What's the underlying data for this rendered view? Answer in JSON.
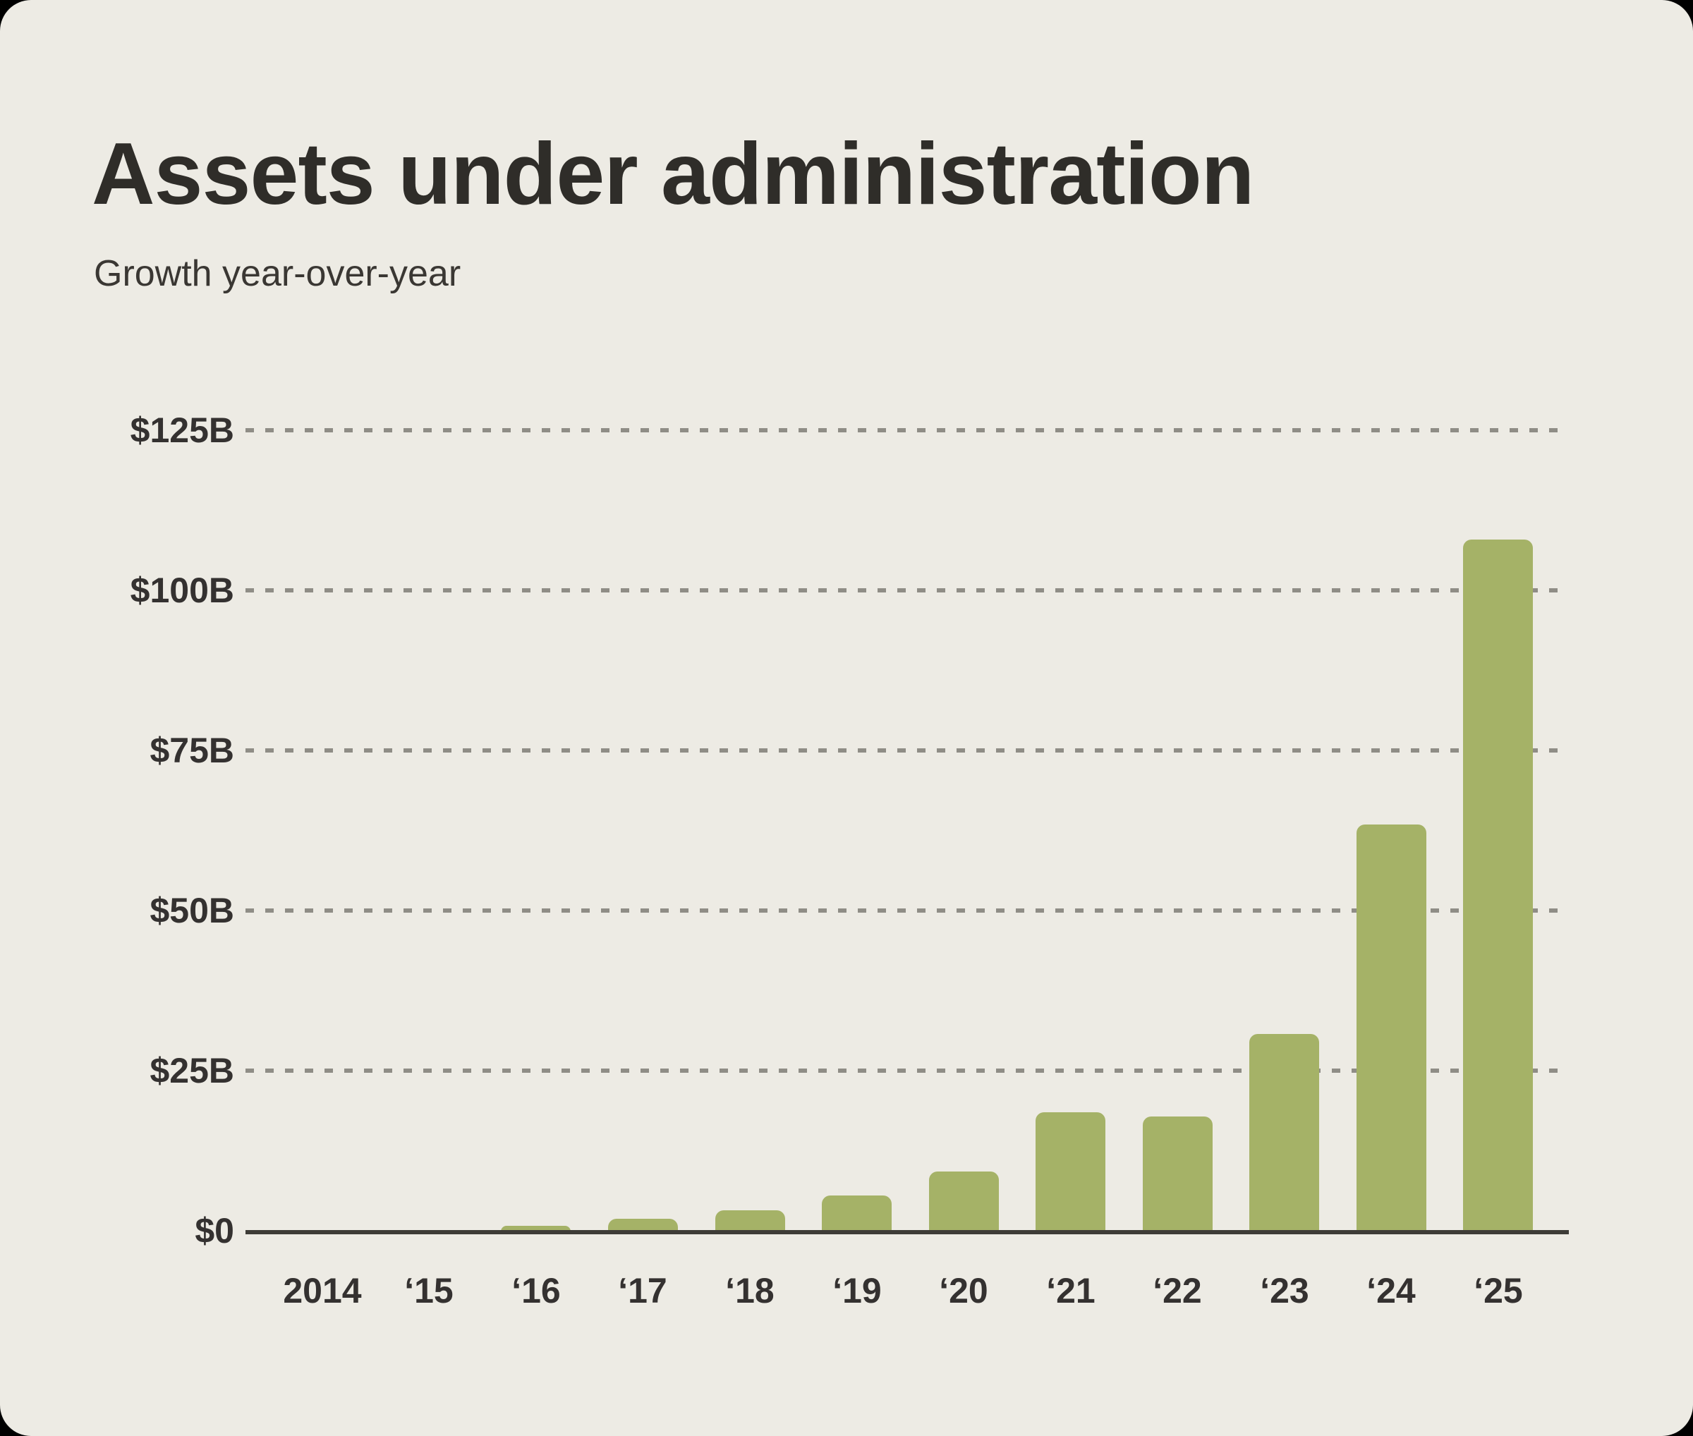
{
  "header": {
    "title": "Assets under administration",
    "subtitle": "Growth year-over-year"
  },
  "theme": {
    "page_bg": "#000000",
    "card_bg": "#edebe4",
    "bar": "#a5b267",
    "gridline": "#8f8d86",
    "axis_line": "#3e3c37",
    "title_text": "#2f2d29",
    "subtitle_text": "#3a3733",
    "label_text": "#343130"
  },
  "chart_data": {
    "type": "bar",
    "title": "Assets under administration",
    "subtitle": "Growth year-over-year",
    "unit": "USD billions",
    "categories": [
      "2014",
      "‘15",
      "‘16",
      "‘17",
      "‘18",
      "‘19",
      "‘20",
      "‘21",
      "‘22",
      "‘23",
      "‘24",
      "‘25"
    ],
    "values": [
      0,
      0,
      0.9,
      2,
      3.3,
      5.6,
      9.4,
      18.6,
      18,
      30.8,
      63.5,
      108
    ],
    "y_ticks": [
      "$0",
      "$25B",
      "$50B",
      "$75B",
      "$100B",
      "$125B"
    ],
    "y_tick_values": [
      0,
      25,
      50,
      75,
      100,
      125
    ],
    "ylim": [
      0,
      125
    ],
    "xlabel": "",
    "ylabel": "",
    "grid": "horizontal-dotted",
    "legend": "none",
    "bar_color": "#a5b267"
  }
}
